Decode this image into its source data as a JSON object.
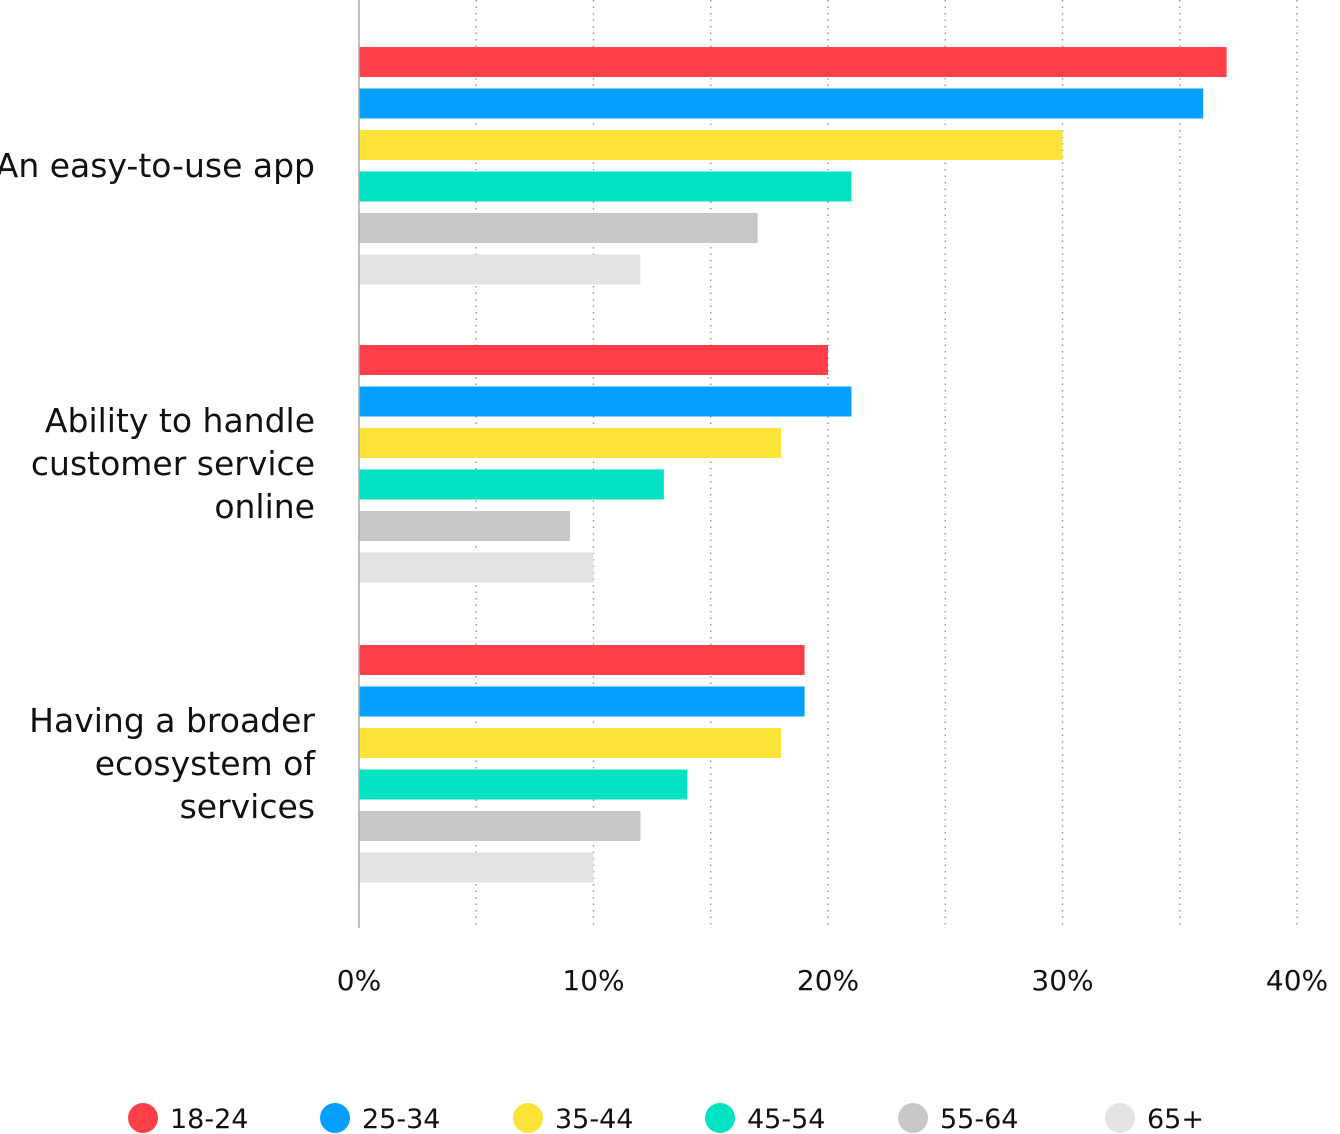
{
  "chart_data": {
    "type": "bar",
    "orientation": "horizontal",
    "title": "",
    "xlabel": "",
    "ylabel": "",
    "categories": [
      [
        "An easy-to-use app"
      ],
      [
        "Ability to handle",
        "customer service",
        "online"
      ],
      [
        "Having a broader",
        "ecosystem of",
        "services"
      ]
    ],
    "series": [
      {
        "name": "18-24",
        "color": "#ff3f4a",
        "values": [
          37,
          20,
          19
        ]
      },
      {
        "name": "25-34",
        "color": "#039ffe",
        "values": [
          36,
          21,
          19
        ]
      },
      {
        "name": "35-44",
        "color": "#fce33a",
        "values": [
          30,
          18,
          18
        ]
      },
      {
        "name": "45-54",
        "color": "#00e2c1",
        "values": [
          21,
          13,
          14
        ]
      },
      {
        "name": "55-64",
        "color": "#c8c8c8",
        "values": [
          17,
          9,
          12
        ]
      },
      {
        "name": "65+",
        "color": "#e3e3e3",
        "values": [
          12,
          10,
          10
        ]
      }
    ],
    "xlim": [
      0,
      40
    ],
    "xticks": [
      0,
      10,
      20,
      30,
      40
    ],
    "xtick_labels": [
      "0%",
      "10%",
      "20%",
      "30%",
      "40%"
    ],
    "grid": "vertical dotted every 5%",
    "legend": "bottom"
  }
}
